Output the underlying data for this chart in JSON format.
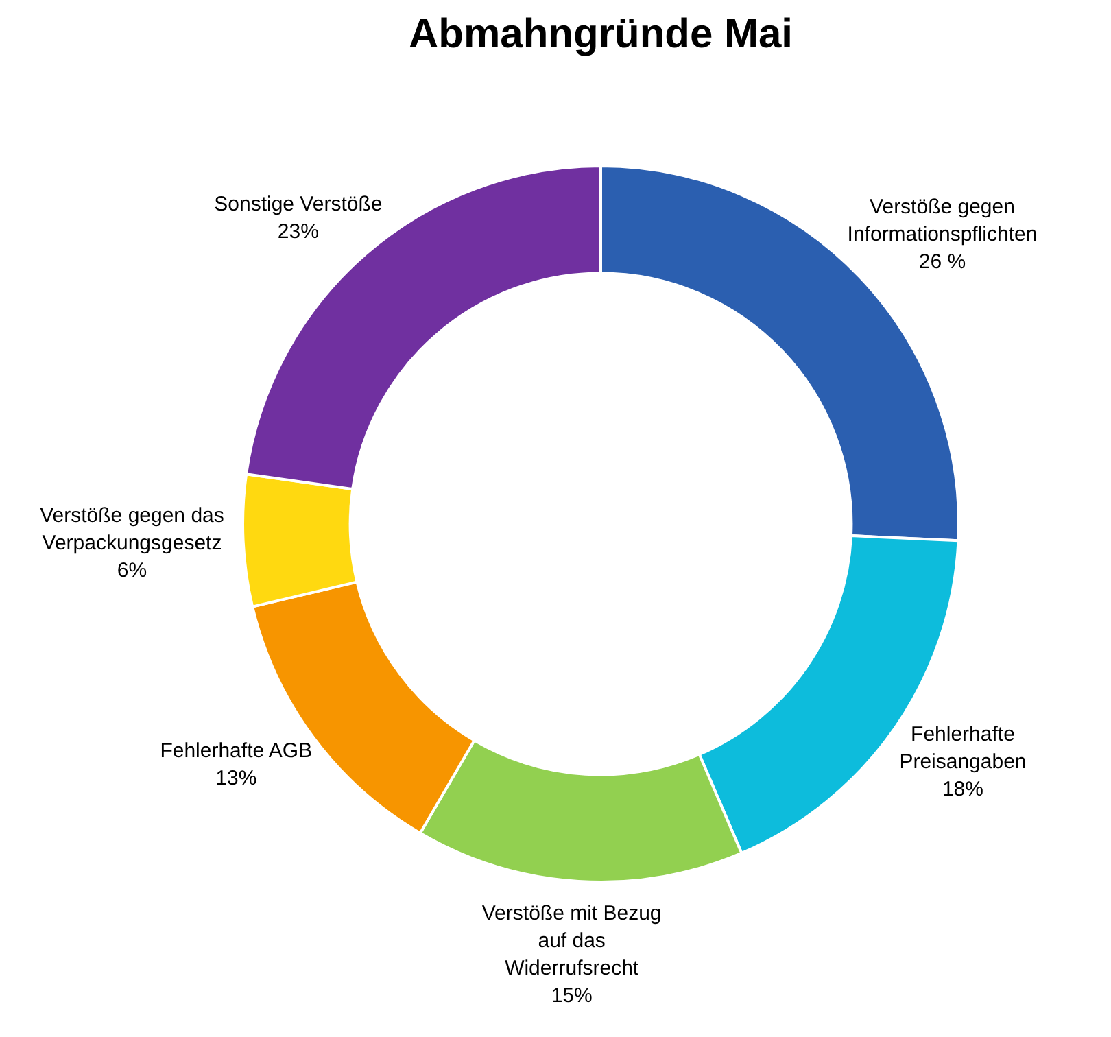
{
  "chart_data": {
    "type": "donut",
    "title": "Abmahngründe Mai",
    "categories": [
      "Verstöße gegen Informationspflichten",
      "Fehlerhafte Preisangaben",
      "Verstöße mit Bezug auf das Widerrufsrecht",
      "Fehlerhafte AGB",
      "Verstöße gegen das Verpackungsgesetz",
      "Sonstige Verstöße"
    ],
    "values": [
      26,
      18,
      15,
      13,
      6,
      23
    ],
    "value_labels": [
      "26 %",
      "18%",
      "15%",
      "13%",
      "6%",
      "23%"
    ],
    "colors": [
      "#2b5fb0",
      "#0dbcdc",
      "#92d050",
      "#f79500",
      "#ffd910",
      "#7030a0"
    ],
    "legend": false
  }
}
